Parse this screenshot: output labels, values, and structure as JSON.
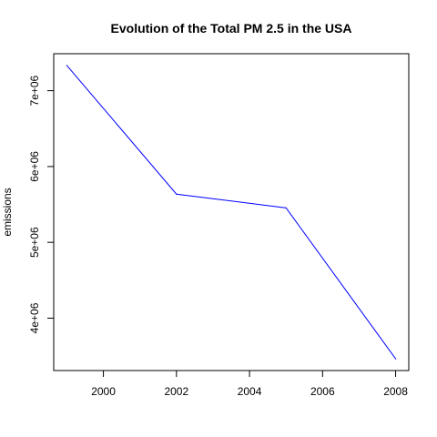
{
  "chart_data": {
    "type": "line",
    "title": "Evolution of the Total PM 2.5 in the USA",
    "xlabel": "",
    "ylabel": "emissions",
    "x": [
      1999,
      2002,
      2005,
      2008
    ],
    "series": [
      {
        "values": [
          7332967,
          5635780,
          5454703,
          3464206
        ],
        "color": "#0000ff"
      }
    ],
    "xticks": [
      2000,
      2002,
      2004,
      2006,
      2008
    ],
    "xtick_labels": [
      "2000",
      "2002",
      "2004",
      "2006",
      "2008"
    ],
    "yticks": [
      4000000,
      5000000,
      6000000,
      7000000
    ],
    "ytick_labels": [
      "4e+06",
      "5e+06",
      "6e+06",
      "7e+06"
    ],
    "xlim": [
      1998.64,
      2008.36
    ],
    "ylim": [
      3309376,
      7487797
    ],
    "grid": false,
    "legend": "none"
  }
}
